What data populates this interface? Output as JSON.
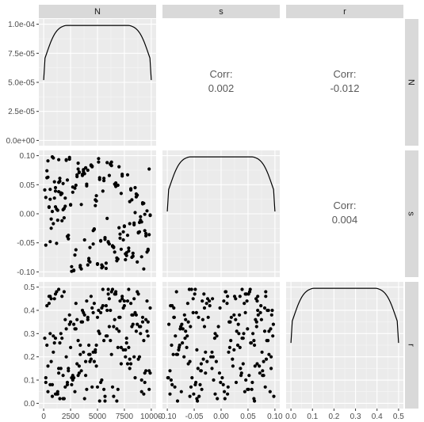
{
  "chart_data": {
    "type": "scatter",
    "title": "",
    "variables": [
      "N",
      "s",
      "r"
    ],
    "ranges": {
      "N": [
        0,
        10000
      ],
      "s": [
        -0.1,
        0.1
      ],
      "r": [
        0,
        0.5
      ]
    },
    "x_ticks": {
      "N": {
        "values": [
          0,
          2500,
          5000,
          7500,
          10000
        ],
        "labels": [
          "0",
          "2500",
          "5000",
          "7500",
          "10000"
        ]
      },
      "s": {
        "values": [
          -0.1,
          -0.05,
          0,
          0.05,
          0.1
        ],
        "labels": [
          "-0.10",
          "-0.05",
          "0.00",
          "0.05",
          "0.10"
        ]
      },
      "r": {
        "values": [
          0,
          0.1,
          0.2,
          0.3,
          0.4,
          0.5
        ],
        "labels": [
          "0.0",
          "0.1",
          "0.2",
          "0.3",
          "0.4",
          "0.5"
        ]
      }
    },
    "y_ticks": {
      "N_density": {
        "range": [
          0,
          0.0001
        ],
        "values": [
          0,
          2.5e-05,
          5e-05,
          7.5e-05,
          0.0001
        ],
        "labels": [
          "0.0e+00",
          "2.5e-05",
          "5.0e-05",
          "7.5e-05",
          "1.0e-04"
        ]
      },
      "s": {
        "values": [
          -0.1,
          -0.05,
          0,
          0.05,
          0.1
        ],
        "labels": [
          "-0.10",
          "-0.05",
          "0.00",
          "0.05",
          "0.10"
        ]
      },
      "r": {
        "values": [
          0,
          0.1,
          0.2,
          0.3,
          0.4,
          0.5
        ],
        "labels": [
          "0.0",
          "0.1",
          "0.2",
          "0.3",
          "0.4",
          "0.5"
        ]
      }
    },
    "correlations": [
      {
        "row": "N",
        "col": "s",
        "label": "Corr:",
        "value": "0.002"
      },
      {
        "row": "N",
        "col": "r",
        "label": "Corr:",
        "value": "-0.012"
      },
      {
        "row": "s",
        "col": "r",
        "label": "Corr:",
        "value": "0.004"
      }
    ],
    "density": {
      "shape": "uniform",
      "plateau_fraction": 0.99,
      "edge_fraction": 0.52
    },
    "scatter": {
      "n_points": 200,
      "N": [
        1800,
        7400,
        3200,
        9100,
        500,
        6100,
        4300,
        8200,
        2600,
        5500,
        900,
        7000,
        3800,
        9600,
        1400,
        6600,
        4900,
        8700,
        2200,
        5900,
        300,
        7800,
        3500,
        9300,
        1100,
        6300,
        4600,
        8500,
        2900,
        5200,
        700,
        7200,
        4100,
        9800,
        1700,
        6900,
        3000,
        8000,
        2400,
        5700,
        1200,
        7600,
        3600,
        9400,
        600,
        6400,
        4400,
        8900,
        2000,
        5400,
        1000,
        7100,
        3300,
        9000,
        400,
        6000,
        4800,
        8300,
        2700,
        5800,
        1500,
        7500,
        3900,
        9700,
        800,
        6700,
        4200,
        8600,
        2300,
        5100,
        1300,
        7300,
        3400,
        9200,
        200,
        6200,
        4700,
        8100,
        2800,
        5600,
        1900,
        7900,
        3700,
        9500,
        1600,
        6800,
        4000,
        8400,
        2100,
        5300,
        600,
        7700,
        3100,
        9900,
        1100,
        6500,
        4500,
        8800,
        2500,
        5000,
        1400,
        7400,
        3800,
        9100,
        900,
        6100,
        4900,
        8200,
        2900,
        5500,
        300,
        7000,
        3200,
        9600,
        1800,
        6600,
        4300,
        8700,
        2200,
        5900,
        700,
        7800,
        3500,
        9300,
        1200,
        6300,
        4600,
        8500,
        2600,
        5200,
        500,
        7200,
        4100,
        9800,
        1700,
        6900,
        3000,
        8000,
        2400,
        5700,
        1000,
        7600,
        3600,
        9400,
        100,
        6400,
        4400,
        8900,
        2000,
        5400,
        1500,
        7100,
        3300,
        9000,
        800,
        6000,
        4800,
        8300,
        2700,
        5800,
        400,
        7500,
        3900,
        9700,
        1300,
        6700,
        4200,
        8600,
        2300,
        5100,
        1900,
        7300,
        3400,
        9200,
        600,
        6200,
        4700,
        8100,
        2800,
        5600,
        1100,
        7900,
        3700,
        9500,
        1600,
        6800,
        4000,
        8400,
        2100,
        5300,
        200,
        7700,
        3100,
        9900,
        1400,
        6500,
        4500,
        8800,
        2500,
        5000
      ],
      "s": [
        0.052,
        -0.031,
        0.087,
        -0.074,
        0.012,
        0.066,
        -0.058,
        0.024,
        -0.091,
        0.039,
        -0.017,
        0.081,
        -0.045,
        0.005,
        0.093,
        -0.066,
        0.031,
        -0.083,
        0.058,
        -0.008,
        0.074,
        -0.037,
        0.016,
        -0.095,
        0.045,
        0.089,
        -0.052,
        0.002,
        -0.071,
        0.062,
        -0.025,
        0.035,
        -0.088,
        0.077,
        -0.012,
        0.049,
        -0.062,
        0.021,
        0.097,
        -0.041,
        0.008,
        -0.079,
        0.068,
        -0.029,
        0.042,
        -0.056,
        0.083,
        -0.015,
        0.027,
        -0.093,
        0.055,
        -0.035,
        0.071,
        -0.005,
        0.091,
        -0.048,
        0.014,
        -0.068,
        0.037,
        -0.085,
        0.061,
        -0.021,
        0.079,
        -0.061,
        0.004,
        0.047,
        -0.077,
        0.029,
        -0.043,
        0.095,
        -0.011,
        0.065,
        -0.089,
        0.019,
        -0.054,
        0.085,
        -0.027,
        0.041,
        -0.097,
        0.057,
        0.009,
        -0.064,
        0.073,
        -0.038,
        0.033,
        -0.081,
        0.048,
        -0.019,
        0.092,
        -0.047,
        0.025,
        -0.072,
        0.064,
        -0.003,
        0.039,
        -0.058,
        0.081,
        -0.033,
        0.015,
        -0.086,
        0.054,
        -0.045,
        0.069,
        -0.014,
        0.096,
        -0.052,
        0.022,
        -0.075,
        0.044,
        -0.091,
        0.062,
        -0.024,
        0.077,
        -0.066,
        0.007,
        0.051,
        -0.083,
        0.032,
        -0.039,
        0.088,
        -0.009,
        0.067,
        -0.095,
        0.018,
        -0.051,
        0.083,
        -0.029,
        0.045,
        -0.099,
        0.059,
        0.011,
        -0.061,
        0.075,
        -0.036,
        0.035,
        -0.078,
        0.049,
        -0.017,
        0.094,
        -0.044,
        0.027,
        -0.069,
        0.066,
        -0.001,
        0.041,
        -0.055,
        0.084,
        -0.031,
        0.013,
        -0.088,
        0.056,
        -0.042,
        0.072,
        -0.011,
        0.098,
        -0.049,
        0.024,
        -0.073,
        0.046,
        -0.094,
        0.063,
        -0.022,
        0.079,
        -0.063,
        0.006,
        0.053,
        -0.081,
        0.034,
        -0.037,
        0.089,
        -0.007,
        0.068,
        -0.092,
        0.017,
        -0.048,
        0.086,
        -0.026,
        0.043,
        -0.098,
        0.061,
        0.012,
        -0.059,
        0.076,
        -0.034,
        0.036,
        -0.076,
        0.051,
        -0.016,
        0.093,
        -0.046,
        0.028,
        -0.067,
        0.067,
        -0.002,
        0.038,
        -0.057,
        0.082,
        -0.032,
        0.016,
        -0.087
      ],
      "r": [
        0.12,
        0.41,
        0.27,
        0.05,
        0.46,
        0.33,
        0.18,
        0.38,
        0.08,
        0.49,
        0.22,
        0.31,
        0.02,
        0.44,
        0.15,
        0.36,
        0.25,
        0.48,
        0.09,
        0.29,
        0.42,
        0.17,
        0.35,
        0.04,
        0.47,
        0.21,
        0.39,
        0.11,
        0.32,
        0.01,
        0.45,
        0.24,
        0.37,
        0.14,
        0.28,
        0.06,
        0.43,
        0.19,
        0.34,
        0.03,
        0.48,
        0.23,
        0.4,
        0.13,
        0.3,
        0.07,
        0.46,
        0.2,
        0.36,
        0.1,
        0.26,
        0.44,
        0.16,
        0.33,
        0.05,
        0.49,
        0.22,
        0.38,
        0.12,
        0.29,
        0.02,
        0.42,
        0.18,
        0.35,
        0.08,
        0.47,
        0.25,
        0.31,
        0.15,
        0.4,
        0.04,
        0.45,
        0.21,
        0.37,
        0.11,
        0.27,
        0.43,
        0.17,
        0.34,
        0.06,
        0.48,
        0.24,
        0.39,
        0.14,
        0.3,
        0.01,
        0.44,
        0.2,
        0.32,
        0.09,
        0.46,
        0.26,
        0.36,
        0.13,
        0.28,
        0.03,
        0.41,
        0.19,
        0.35,
        0.07,
        0.49,
        0.23,
        0.38,
        0.1,
        0.29,
        0.45,
        0.16,
        0.33,
        0.05,
        0.42,
        0.25,
        0.37,
        0.12,
        0.31,
        0.02,
        0.47,
        0.21,
        0.34,
        0.08,
        0.4,
        0.18,
        0.44,
        0.14,
        0.27,
        0.04,
        0.48,
        0.22,
        0.39,
        0.11,
        0.3,
        0.43,
        0.17,
        0.36,
        0.06,
        0.46,
        0.24,
        0.32,
        0.15,
        0.38,
        0.01,
        0.45,
        0.2,
        0.35,
        0.09,
        0.28,
        0.49,
        0.19,
        0.33,
        0.07,
        0.41,
        0.26,
        0.37,
        0.13,
        0.3,
        0.03,
        0.47,
        0.23,
        0.34,
        0.1,
        0.42,
        0.16,
        0.44,
        0.12,
        0.29,
        0.05,
        0.48,
        0.21,
        0.38,
        0.14,
        0.31,
        0.02,
        0.46,
        0.25,
        0.35,
        0.08,
        0.4,
        0.18,
        0.43,
        0.11,
        0.27,
        0.04,
        0.49,
        0.22,
        0.36,
        0.15,
        0.32,
        0.06,
        0.45,
        0.2,
        0.39,
        0.09,
        0.28,
        0.17,
        0.41,
        0.13,
        0.33,
        0.07,
        0.47,
        0.24,
        0.37
      ]
    }
  }
}
